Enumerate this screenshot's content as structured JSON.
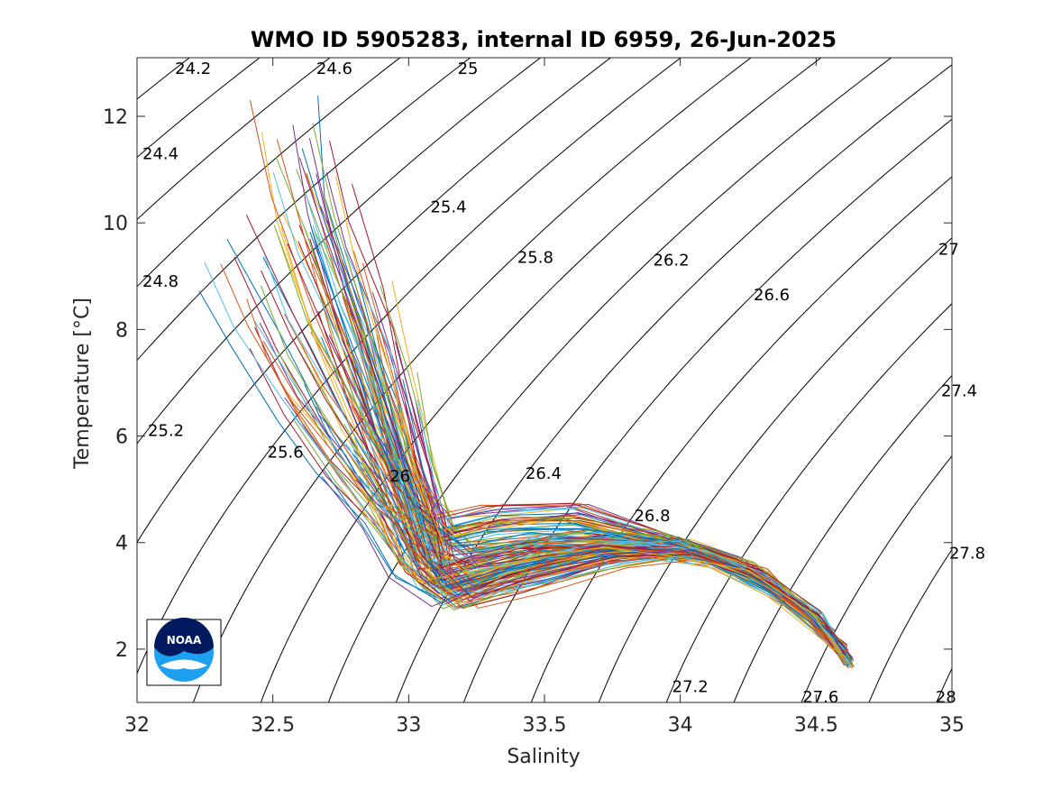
{
  "chart_data": {
    "type": "line",
    "title": "WMO ID 5905283, internal ID 6959, 26-Jun-2025",
    "xlabel": "Salinity",
    "ylabel": "Temperature [°C]",
    "xlim": [
      32,
      35
    ],
    "ylim": [
      1,
      13.1
    ],
    "x_ticks": [
      "32",
      "32.5",
      "33",
      "33.5",
      "34",
      "34.5",
      "35"
    ],
    "y_ticks": [
      "2",
      "4",
      "6",
      "8",
      "10",
      "12"
    ],
    "grid": false,
    "legend": "none",
    "density_contours": [
      {
        "label": "24.2",
        "label_x": 32.14,
        "label_y": 12.9
      },
      {
        "label": "24.4",
        "label_x": 32.02,
        "label_y": 11.3
      },
      {
        "label": "24.6",
        "label_x": 32.66,
        "label_y": 12.9
      },
      {
        "label": "24.8",
        "label_x": 32.02,
        "label_y": 8.9
      },
      {
        "label": "25",
        "label_x": 33.18,
        "label_y": 12.9
      },
      {
        "label": "25.2",
        "label_x": 32.04,
        "label_y": 6.1
      },
      {
        "label": "25.4",
        "label_x": 33.08,
        "label_y": 10.3
      },
      {
        "label": "25.6",
        "label_x": 32.48,
        "label_y": 5.7
      },
      {
        "label": "25.8",
        "label_x": 33.4,
        "label_y": 9.35
      },
      {
        "label": "26",
        "label_x": 32.93,
        "label_y": 5.25
      },
      {
        "label": "26.2",
        "label_x": 33.9,
        "label_y": 9.3
      },
      {
        "label": "26.4",
        "label_x": 33.43,
        "label_y": 5.3
      },
      {
        "label": "26.6",
        "label_x": 34.27,
        "label_y": 8.65
      },
      {
        "label": "26.8",
        "label_x": 33.83,
        "label_y": 4.5
      },
      {
        "label": "27",
        "label_x": 34.95,
        "label_y": 9.5
      },
      {
        "label": "27.2",
        "label_x": 33.97,
        "label_y": 1.3
      },
      {
        "label": "27.4",
        "label_x": 34.96,
        "label_y": 6.85
      },
      {
        "label": "27.6",
        "label_x": 34.45,
        "label_y": 1.1
      },
      {
        "label": "27.8",
        "label_x": 34.99,
        "label_y": 3.8
      },
      {
        "label": "28",
        "label_x": 34.94,
        "label_y": 1.1
      }
    ],
    "profiles": {
      "description_free": true,
      "palette": [
        "#0072BD",
        "#D95319",
        "#EDB120",
        "#7E2F8E",
        "#77AC30",
        "#4DBEEE",
        "#A2142F"
      ],
      "count": 150,
      "representative_tracks": [
        {
          "x": [
            32.55,
            32.62,
            32.75,
            32.88,
            32.98,
            33.05,
            33.1,
            33.25,
            33.5,
            33.8,
            34.1,
            34.35,
            34.55,
            34.62
          ],
          "y": [
            12.0,
            10.2,
            8.2,
            6.3,
            4.8,
            3.9,
            3.4,
            3.6,
            3.9,
            3.95,
            3.7,
            3.1,
            2.2,
            1.7
          ]
        },
        {
          "x": [
            32.6,
            32.7,
            32.85,
            32.95,
            33.05,
            33.1,
            33.2,
            33.45,
            33.75,
            34.05,
            34.3,
            34.5,
            34.6
          ],
          "y": [
            11.0,
            9.6,
            7.6,
            5.8,
            4.5,
            3.5,
            3.0,
            3.3,
            3.7,
            3.8,
            3.3,
            2.6,
            1.9
          ]
        },
        {
          "x": [
            32.45,
            32.6,
            32.8,
            32.95,
            33.1,
            33.3,
            33.6,
            33.9,
            34.2,
            34.45,
            34.6
          ],
          "y": [
            9.8,
            8.0,
            6.2,
            4.9,
            4.2,
            4.4,
            4.5,
            4.1,
            3.6,
            2.8,
            2.0
          ]
        },
        {
          "x": [
            32.35,
            32.45,
            32.6,
            32.75,
            32.9,
            33.0,
            33.15,
            33.4,
            33.7,
            34.0,
            34.3,
            34.55
          ],
          "y": [
            9.1,
            7.9,
            6.6,
            5.5,
            4.5,
            3.6,
            3.0,
            3.5,
            3.85,
            3.9,
            3.4,
            2.3
          ]
        },
        {
          "x": [
            32.7,
            32.82,
            32.92,
            33.0,
            33.08,
            33.2,
            33.45,
            33.7,
            34.0,
            34.25,
            34.5,
            34.62
          ],
          "y": [
            10.6,
            8.6,
            6.9,
            5.3,
            4.1,
            3.7,
            3.9,
            4.0,
            3.9,
            3.5,
            2.6,
            1.75
          ]
        }
      ]
    }
  },
  "logo": {
    "text": "NOAA"
  }
}
